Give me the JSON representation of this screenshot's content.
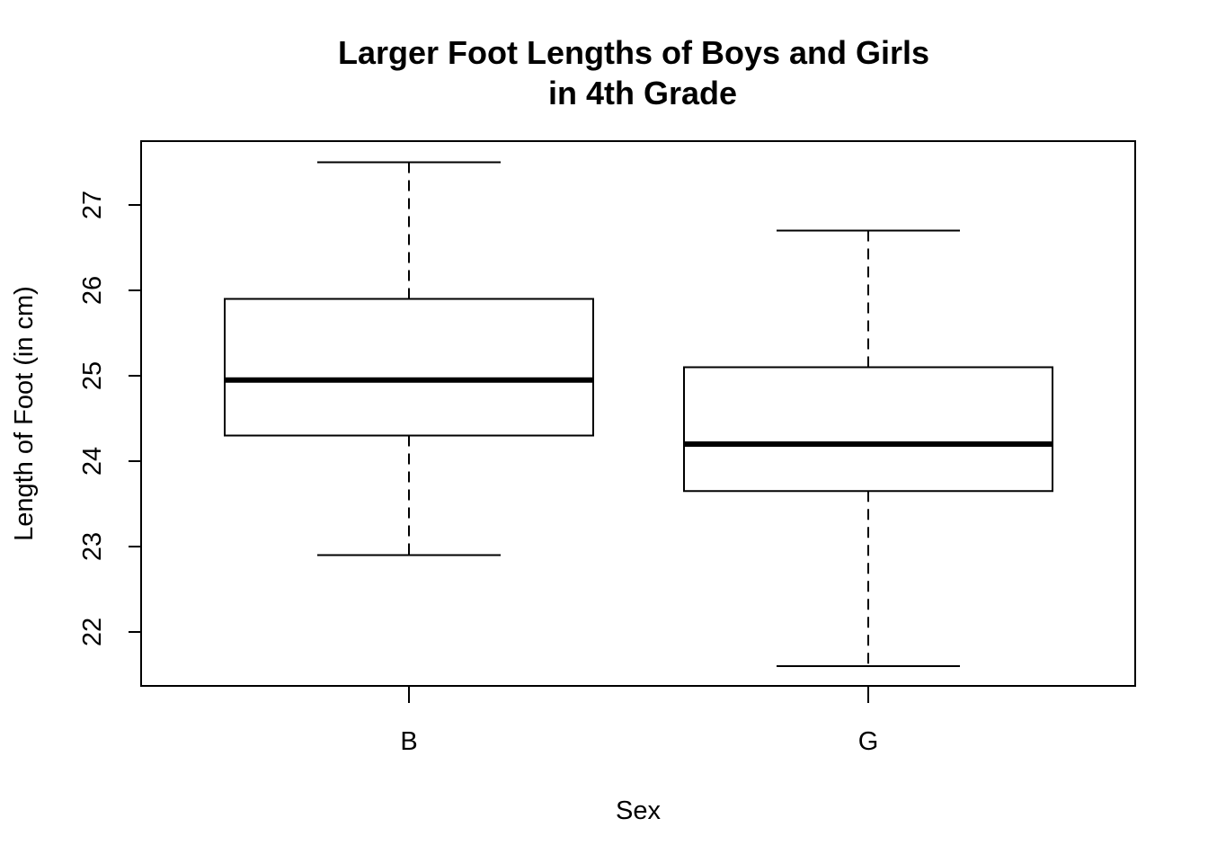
{
  "chart_data": {
    "type": "boxplot",
    "title": [
      "Larger Foot Lengths of Boys and Girls",
      "in 4th Grade"
    ],
    "xlabel": "Sex",
    "ylabel": "Length of Foot (in cm)",
    "categories": [
      "B",
      "G"
    ],
    "ylim": [
      21.38,
      27.75
    ],
    "yticks": [
      22,
      23,
      24,
      25,
      26,
      27
    ],
    "boxes": [
      {
        "category": "B",
        "min": 22.9,
        "q1": 24.3,
        "median": 24.95,
        "q3": 25.9,
        "max": 27.5
      },
      {
        "category": "G",
        "min": 21.6,
        "q1": 23.65,
        "median": 24.2,
        "q3": 25.1,
        "max": 26.7
      }
    ],
    "grid": false,
    "legend": "none"
  }
}
